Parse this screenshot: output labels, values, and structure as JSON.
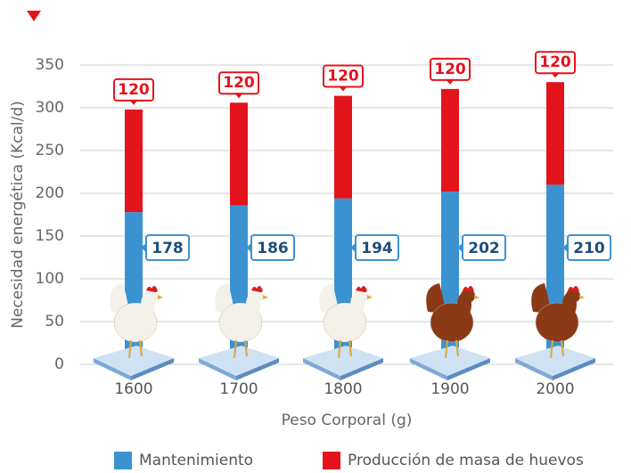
{
  "chart_data": {
    "type": "stacked-bar",
    "y_label": "Necesidad energética (Kcal/d)",
    "x_label": "Peso Corporal (g)",
    "categories": [
      "1600",
      "1700",
      "1800",
      "1900",
      "2000"
    ],
    "series": [
      {
        "name": "Mantenimiento",
        "color": "#3a93d0",
        "values": [
          178,
          186,
          194,
          202,
          210
        ]
      },
      {
        "name": "Producción de masa de huevos",
        "color": "#e3141c",
        "values": [
          120,
          120,
          120,
          120,
          120
        ]
      }
    ],
    "ylim": [
      0,
      350
    ],
    "yticks": [
      0,
      50,
      100,
      150,
      200,
      250,
      300,
      350
    ],
    "grid": true
  }
}
